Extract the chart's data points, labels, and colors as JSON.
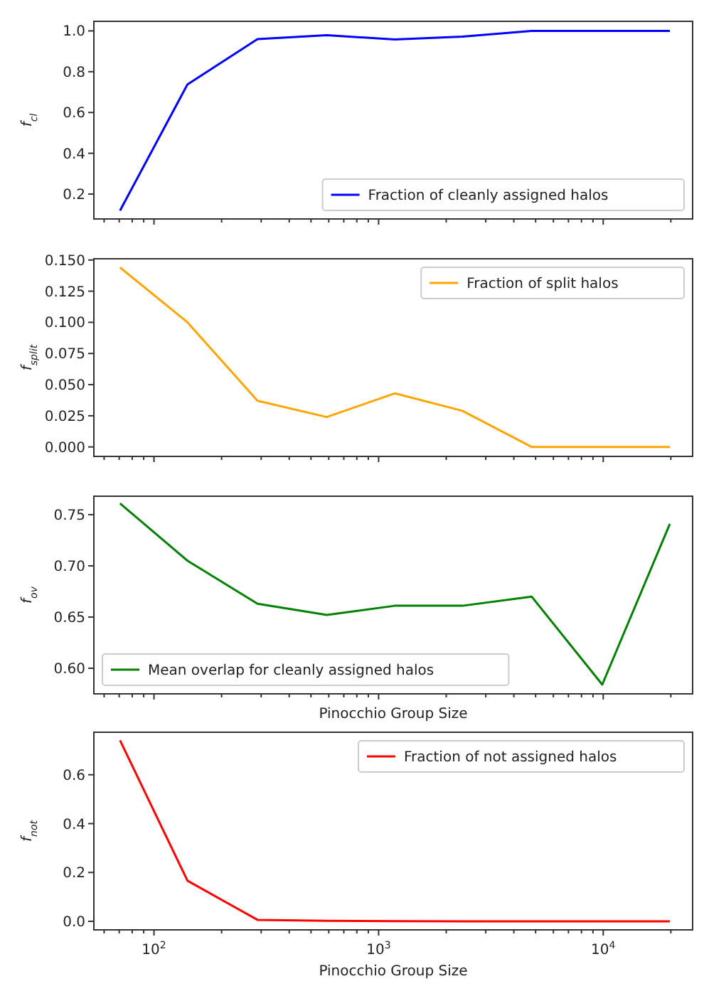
{
  "chart_data": [
    {
      "type": "line",
      "ylabel": "f$_{cl}$",
      "x": [
        70.6,
        141,
        289,
        588,
        1180,
        2360,
        4800,
        9900,
        19800
      ],
      "xlim": [
        54,
        25000
      ],
      "xticks": [
        60,
        70,
        80,
        90,
        100,
        200,
        300,
        400,
        500,
        600,
        700,
        800,
        900,
        1000,
        2000,
        3000,
        4000,
        5000,
        6000,
        7000,
        8000,
        9000,
        10000,
        20000
      ],
      "log": "x",
      "tick_labels": "y",
      "ylim": [
        0.078,
        1.047
      ],
      "yticks": [
        {
          "value": 0.2,
          "label": "0.2"
        },
        {
          "value": 0.4,
          "label": "0.4"
        },
        {
          "value": 0.6,
          "label": "0.6"
        },
        {
          "value": 0.8,
          "label": "0.8"
        },
        {
          "value": 1.0,
          "label": "1.0"
        }
      ],
      "legend": "bottom right",
      "series": [
        {
          "name": "Fraction of cleanly assigned halos",
          "color": "#0000ff",
          "values": [
            0.119,
            0.738,
            0.96,
            0.979,
            0.958,
            0.972,
            1.0,
            1.0,
            1.0
          ]
        }
      ]
    },
    {
      "type": "line",
      "ylabel": "f$_{split}$",
      "x": [
        70.6,
        141,
        289,
        588,
        1180,
        2360,
        4800,
        9900,
        19800
      ],
      "xlim": [
        54,
        25000
      ],
      "xticks": [
        60,
        70,
        80,
        90,
        100,
        200,
        300,
        400,
        500,
        600,
        700,
        800,
        900,
        1000,
        2000,
        3000,
        4000,
        5000,
        6000,
        7000,
        8000,
        9000,
        10000,
        20000
      ],
      "log": "x",
      "tick_labels": "y",
      "ylim": [
        -0.0076,
        0.151
      ],
      "yticks": [
        {
          "value": 0,
          "label": "0.000"
        },
        {
          "value": 0.025,
          "label": "0.025"
        },
        {
          "value": 0.05,
          "label": "0.050"
        },
        {
          "value": 0.075,
          "label": "0.075"
        },
        {
          "value": 0.1,
          "label": "0.100"
        },
        {
          "value": 0.125,
          "label": "0.125"
        },
        {
          "value": 0.15,
          "label": "0.150"
        }
      ],
      "legend": "top right",
      "series": [
        {
          "name": "Fraction of split halos",
          "color": "#ffa500",
          "values": [
            0.144,
            0.1,
            0.037,
            0.024,
            0.043,
            0.029,
            0,
            0,
            0
          ]
        }
      ]
    },
    {
      "type": "line",
      "ylabel": "f$_{ov}$",
      "xlabel": "Pinocchio Group Size",
      "x": [
        70.6,
        141,
        289,
        588,
        1180,
        2360,
        4800,
        9900,
        19800
      ],
      "xlim": [
        54,
        25000
      ],
      "xticks": [
        60,
        70,
        80,
        90,
        100,
        200,
        300,
        400,
        500,
        600,
        700,
        800,
        900,
        1000,
        2000,
        3000,
        4000,
        5000,
        6000,
        7000,
        8000,
        9000,
        10000,
        20000
      ],
      "log": "x",
      "tick_labels": "y",
      "ylim": [
        0.575,
        0.768
      ],
      "yticks": [
        {
          "value": 0.6,
          "label": "0.60"
        },
        {
          "value": 0.65,
          "label": "0.65"
        },
        {
          "value": 0.7,
          "label": "0.70"
        },
        {
          "value": 0.75,
          "label": "0.75"
        }
      ],
      "legend": "bottom left",
      "series": [
        {
          "name": "Mean overlap for cleanly assigned halos",
          "color": "#008000",
          "values": [
            0.761,
            0.705,
            0.663,
            0.652,
            0.661,
            0.661,
            0.67,
            0.584,
            0.741
          ]
        }
      ]
    },
    {
      "type": "line",
      "ylabel": "f$_{not}$",
      "xlabel": "Pinocchio Group Size",
      "x": [
        70.6,
        141,
        289,
        588,
        1180,
        2360,
        4800,
        9900,
        19800
      ],
      "xlim": [
        54,
        25000
      ],
      "xticks": [
        {
          "value": 60,
          "label": null
        },
        {
          "value": 70,
          "label": null
        },
        {
          "value": 80,
          "label": null
        },
        {
          "value": 90,
          "label": null
        },
        {
          "value": 100,
          "label": "10$^{2}$"
        },
        {
          "value": 200,
          "label": null
        },
        {
          "value": 300,
          "label": null
        },
        {
          "value": 400,
          "label": null
        },
        {
          "value": 500,
          "label": null
        },
        {
          "value": 600,
          "label": null
        },
        {
          "value": 700,
          "label": null
        },
        {
          "value": 800,
          "label": null
        },
        {
          "value": 900,
          "label": null
        },
        {
          "value": 1000,
          "label": "10$^{3}$"
        },
        {
          "value": 2000,
          "label": null
        },
        {
          "value": 3000,
          "label": null
        },
        {
          "value": 4000,
          "label": null
        },
        {
          "value": 5000,
          "label": null
        },
        {
          "value": 6000,
          "label": null
        },
        {
          "value": 7000,
          "label": null
        },
        {
          "value": 8000,
          "label": null
        },
        {
          "value": 9000,
          "label": null
        },
        {
          "value": 10000,
          "label": "10$^{4}$"
        },
        {
          "value": 20000,
          "label": null
        }
      ],
      "log": "x",
      "ylim": [
        -0.035,
        0.774
      ],
      "yticks": [
        {
          "value": 0,
          "label": "0.0"
        },
        {
          "value": 0.2,
          "label": "0.2"
        },
        {
          "value": 0.4,
          "label": "0.4"
        },
        {
          "value": 0.6,
          "label": "0.6"
        }
      ],
      "legend": "top right",
      "series": [
        {
          "name": "Fraction of not assigned halos",
          "color": "#ff0000",
          "values": [
            0.741,
            0.166,
            0.006,
            0.002,
            0.001,
            0,
            0,
            0,
            0
          ]
        }
      ]
    }
  ]
}
